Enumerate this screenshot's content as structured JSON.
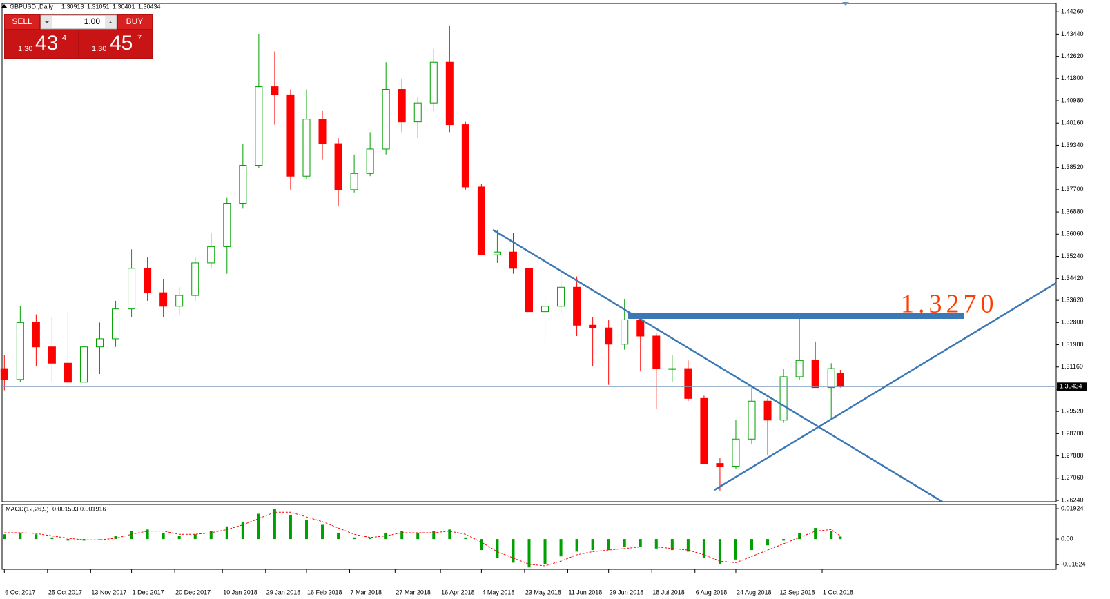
{
  "trade_panel": {
    "sell": "SELL",
    "buy": "BUY",
    "lots": "1.00",
    "bid": {
      "prefix": "1.30",
      "big": "43",
      "small": "4"
    },
    "ask": {
      "prefix": "1.30",
      "big": "45",
      "small": "7"
    }
  },
  "chart_data": [
    {
      "type": "candlestick",
      "title": "GBPUSD.,Daily",
      "x": [
        "2017-10-06",
        "2017-10-13",
        "2017-10-20",
        "2017-10-27",
        "2017-11-03",
        "2017-11-10",
        "2017-11-17",
        "2017-11-24",
        "2017-12-01",
        "2017-12-08",
        "2017-12-15",
        "2017-12-22",
        "2017-12-29",
        "2018-01-05",
        "2018-01-12",
        "2018-01-19",
        "2018-01-26",
        "2018-02-02",
        "2018-02-09",
        "2018-02-16",
        "2018-02-23",
        "2018-03-02",
        "2018-03-09",
        "2018-03-16",
        "2018-03-23",
        "2018-03-30",
        "2018-04-06",
        "2018-04-13",
        "2018-04-20",
        "2018-04-27",
        "2018-05-04",
        "2018-05-11",
        "2018-05-18",
        "2018-05-25",
        "2018-06-01",
        "2018-06-08",
        "2018-06-15",
        "2018-06-22",
        "2018-06-29",
        "2018-07-06",
        "2018-07-13",
        "2018-07-20",
        "2018-07-27",
        "2018-08-03",
        "2018-08-10",
        "2018-08-17",
        "2018-08-24",
        "2018-08-31",
        "2018-09-07",
        "2018-09-14",
        "2018-09-21",
        "2018-09-28",
        "2018-10-05",
        "2018-10-09"
      ],
      "open": [
        1.311,
        1.307,
        1.328,
        1.319,
        1.313,
        1.306,
        1.319,
        1.322,
        1.333,
        1.348,
        1.339,
        1.334,
        1.338,
        1.35,
        1.356,
        1.372,
        1.386,
        1.415,
        1.412,
        1.382,
        1.403,
        1.394,
        1.377,
        1.383,
        1.392,
        1.414,
        1.402,
        1.409,
        1.424,
        1.401,
        1.378,
        1.353,
        1.354,
        1.348,
        1.332,
        1.334,
        1.341,
        1.327,
        1.326,
        1.32,
        1.329,
        1.323,
        1.311,
        1.311,
        1.3,
        1.276,
        1.275,
        1.285,
        1.299,
        1.292,
        1.308,
        1.314,
        1.304,
        1.30913
      ],
      "high": [
        1.316,
        1.334,
        1.331,
        1.33,
        1.332,
        1.322,
        1.328,
        1.336,
        1.355,
        1.352,
        1.344,
        1.341,
        1.352,
        1.361,
        1.374,
        1.394,
        1.4345,
        1.428,
        1.414,
        1.414,
        1.406,
        1.396,
        1.39,
        1.398,
        1.424,
        1.418,
        1.411,
        1.429,
        1.4376,
        1.402,
        1.379,
        1.362,
        1.361,
        1.35,
        1.338,
        1.347,
        1.345,
        1.33,
        1.329,
        1.3365,
        1.33,
        1.324,
        1.316,
        1.314,
        1.301,
        1.278,
        1.292,
        1.304,
        1.3,
        1.311,
        1.3297,
        1.321,
        1.313,
        1.31051
      ],
      "low": [
        1.303,
        1.306,
        1.312,
        1.306,
        1.304,
        1.304,
        1.309,
        1.319,
        1.33,
        1.336,
        1.33,
        1.331,
        1.336,
        1.348,
        1.346,
        1.37,
        1.385,
        1.401,
        1.377,
        1.381,
        1.388,
        1.371,
        1.376,
        1.382,
        1.39,
        1.398,
        1.396,
        1.406,
        1.398,
        1.377,
        1.353,
        1.35,
        1.346,
        1.33,
        1.3205,
        1.331,
        1.323,
        1.312,
        1.305,
        1.318,
        1.31,
        1.296,
        1.306,
        1.299,
        1.276,
        1.266,
        1.274,
        1.283,
        1.279,
        1.291,
        1.307,
        1.304,
        1.292,
        1.30401
      ],
      "close": [
        1.307,
        1.328,
        1.319,
        1.313,
        1.306,
        1.319,
        1.322,
        1.333,
        1.348,
        1.339,
        1.334,
        1.338,
        1.35,
        1.356,
        1.372,
        1.386,
        1.415,
        1.412,
        1.382,
        1.403,
        1.394,
        1.377,
        1.383,
        1.392,
        1.414,
        1.402,
        1.409,
        1.424,
        1.401,
        1.378,
        1.353,
        1.354,
        1.348,
        1.332,
        1.334,
        1.341,
        1.327,
        1.326,
        1.32,
        1.329,
        1.323,
        1.311,
        1.311,
        1.3,
        1.276,
        1.275,
        1.285,
        1.299,
        1.292,
        1.308,
        1.314,
        1.304,
        1.311,
        1.30434
      ],
      "up_color": "#00a000",
      "down_color": "#ff0000",
      "xlim": [
        "2017-10-05",
        "2019-01-12"
      ],
      "xticks": [
        {
          "value": "2017-10-06",
          "label": "6 Oct 2017"
        },
        {
          "value": "2017-10-25",
          "label": "25 Oct 2017"
        },
        {
          "value": "2017-11-13",
          "label": "13 Nov 2017"
        },
        {
          "value": "2017-12-01",
          "label": "1 Dec 2017"
        },
        {
          "value": "2017-12-20",
          "label": "20 Dec 2017"
        },
        {
          "value": "2018-01-10",
          "label": "10 Jan 2018"
        },
        {
          "value": "2018-01-29",
          "label": "29 Jan 2018"
        },
        {
          "value": "2018-02-16",
          "label": "16 Feb 2018"
        },
        {
          "value": "2018-03-07",
          "label": "7 Mar 2018"
        },
        {
          "value": "2018-03-27",
          "label": "27 Mar 2018"
        },
        {
          "value": "2018-04-16",
          "label": "16 Apr 2018"
        },
        {
          "value": "2018-05-04",
          "label": "4 May 2018"
        },
        {
          "value": "2018-05-23",
          "label": "23 May 2018"
        },
        {
          "value": "2018-06-11",
          "label": "11 Jun 2018"
        },
        {
          "value": "2018-06-29",
          "label": "29 Jun 2018"
        },
        {
          "value": "2018-07-18",
          "label": "18 Jul 2018"
        },
        {
          "value": "2018-08-06",
          "label": "6 Aug 2018"
        },
        {
          "value": "2018-08-24",
          "label": "24 Aug 2018"
        },
        {
          "value": "2018-09-12",
          "label": "12 Sep 2018"
        },
        {
          "value": "2018-10-01",
          "label": "1 Oct 2018"
        }
      ],
      "ylim": [
        1.2619,
        1.4457
      ],
      "yticks": [
        {
          "value": 1.4426,
          "label": "1.44260"
        },
        {
          "value": 1.4344,
          "label": "1.43440"
        },
        {
          "value": 1.4262,
          "label": "1.42620"
        },
        {
          "value": 1.418,
          "label": "1.41800"
        },
        {
          "value": 1.4098,
          "label": "1.40980"
        },
        {
          "value": 1.4016,
          "label": "1.40160"
        },
        {
          "value": 1.3934,
          "label": "1.39340"
        },
        {
          "value": 1.3852,
          "label": "1.38520"
        },
        {
          "value": 1.377,
          "label": "1.37700"
        },
        {
          "value": 1.3688,
          "label": "1.36880"
        },
        {
          "value": 1.3606,
          "label": "1.36060"
        },
        {
          "value": 1.3524,
          "label": "1.35240"
        },
        {
          "value": 1.3442,
          "label": "1.34420"
        },
        {
          "value": 1.3362,
          "label": "1.33620"
        },
        {
          "value": 1.328,
          "label": "1.32800"
        },
        {
          "value": 1.3198,
          "label": "1.31980"
        },
        {
          "value": 1.3116,
          "label": "1.31160"
        },
        {
          "value": 1.3034,
          "label": "1.30340"
        },
        {
          "value": 1.2952,
          "label": "1.29520"
        },
        {
          "value": 1.287,
          "label": "1.28700"
        },
        {
          "value": 1.2788,
          "label": "1.27880"
        },
        {
          "value": 1.2706,
          "label": "1.27060"
        },
        {
          "value": 1.2624,
          "label": "1.26240"
        }
      ],
      "annotations": [
        "1.3270"
      ]
    },
    {
      "type": "macd",
      "title": "MACD(12,26,9)",
      "x": [
        "2017-10-06",
        "2017-10-13",
        "2017-10-20",
        "2017-10-27",
        "2017-11-03",
        "2017-11-10",
        "2017-11-17",
        "2017-11-24",
        "2017-12-01",
        "2017-12-08",
        "2017-12-15",
        "2017-12-22",
        "2017-12-29",
        "2018-01-05",
        "2018-01-12",
        "2018-01-19",
        "2018-01-26",
        "2018-02-02",
        "2018-02-09",
        "2018-02-16",
        "2018-02-23",
        "2018-03-02",
        "2018-03-09",
        "2018-03-16",
        "2018-03-23",
        "2018-03-30",
        "2018-04-06",
        "2018-04-13",
        "2018-04-20",
        "2018-04-27",
        "2018-05-04",
        "2018-05-11",
        "2018-05-18",
        "2018-05-25",
        "2018-06-01",
        "2018-06-08",
        "2018-06-15",
        "2018-06-22",
        "2018-06-29",
        "2018-07-06",
        "2018-07-13",
        "2018-07-20",
        "2018-07-27",
        "2018-08-03",
        "2018-08-10",
        "2018-08-17",
        "2018-08-24",
        "2018-08-31",
        "2018-09-07",
        "2018-09-14",
        "2018-09-21",
        "2018-09-28",
        "2018-10-05",
        "2018-10-09"
      ],
      "series": [
        {
          "color": "#00a000",
          "values": [
            0.003,
            0.004,
            0.003,
            0.001,
            -0.001,
            -0.001,
            0,
            0.002,
            0.005,
            0.006,
            0.004,
            0.002,
            0.003,
            0.005,
            0.008,
            0.011,
            0.016,
            0.019,
            0.015,
            0.012,
            0.009,
            0.004,
            0.001,
            0.001,
            0.004,
            0.005,
            0.004,
            0.005,
            0.006,
            0.001,
            -0.007,
            -0.012,
            -0.015,
            -0.018,
            -0.016,
            -0.011,
            -0.008,
            -0.007,
            -0.007,
            -0.005,
            -0.005,
            -0.006,
            -0.007,
            -0.008,
            -0.012,
            -0.016,
            -0.013,
            -0.007,
            -0.004,
            -0.001,
            0.004,
            0.007,
            0.005,
            0.001593
          ]
        },
        {
          "color": "#ff0000",
          "values": [
            0.004,
            0.004,
            0.0035,
            0.002,
            0.0005,
            -0.0005,
            -0.0005,
            0.0005,
            0.003,
            0.005,
            0.005,
            0.003,
            0.003,
            0.004,
            0.006,
            0.009,
            0.013,
            0.017,
            0.017,
            0.014,
            0.011,
            0.007,
            0.003,
            0.001,
            0.002,
            0.004,
            0.004,
            0.004,
            0.005,
            0.003,
            -0.002,
            -0.008,
            -0.012,
            -0.016,
            -0.017,
            -0.014,
            -0.01,
            -0.008,
            -0.007,
            -0.006,
            -0.005,
            -0.005,
            -0.006,
            -0.007,
            -0.01,
            -0.014,
            -0.015,
            -0.011,
            -0.007,
            -0.003,
            0.001,
            0.005,
            0.006,
            0.001916
          ]
        }
      ],
      "ylim": [
        -0.0192,
        0.0219
      ],
      "yticks": [
        0.01924,
        {
          "value": 0,
          "label": "0.00"
        },
        -0.01624
      ]
    }
  ]
}
